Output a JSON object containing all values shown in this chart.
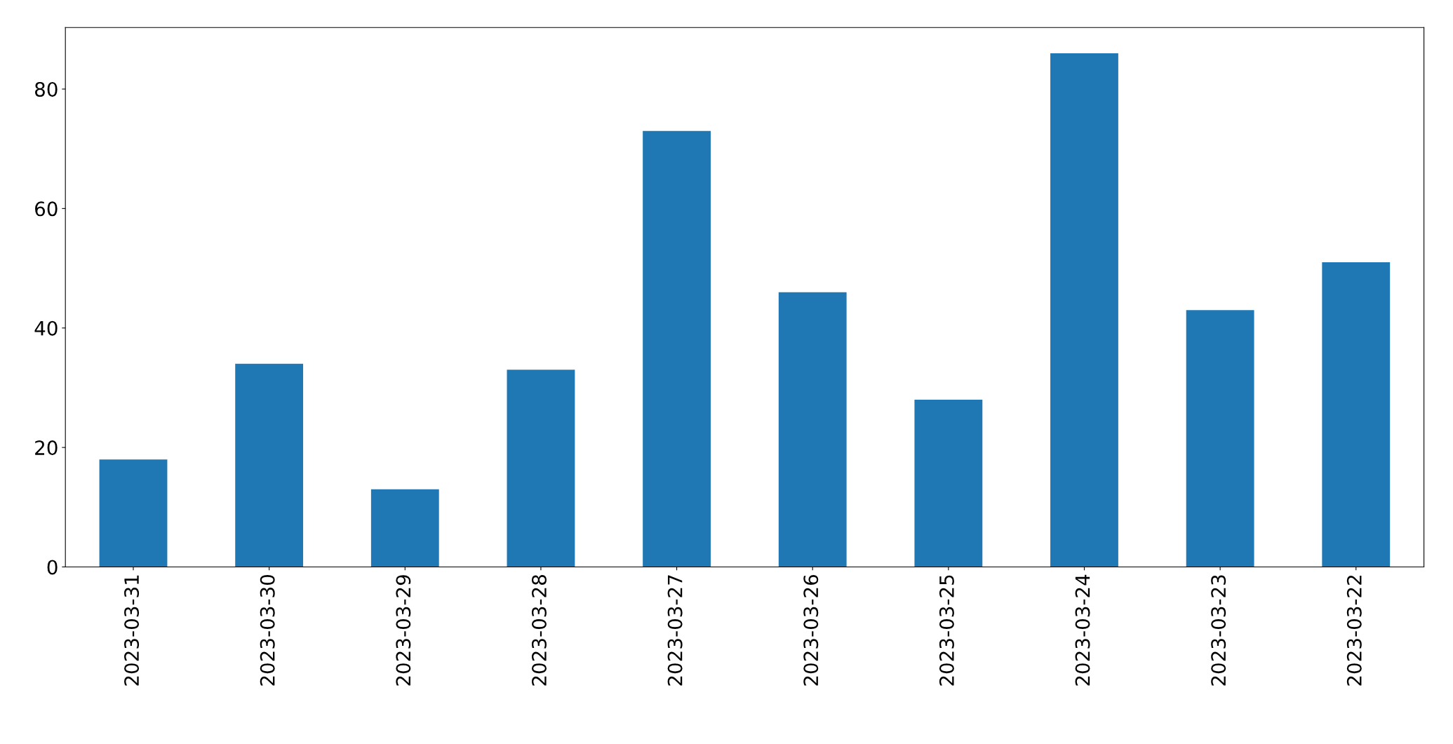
{
  "chart_data": {
    "type": "bar",
    "categories": [
      "2023-03-31",
      "2023-03-30",
      "2023-03-29",
      "2023-03-28",
      "2023-03-27",
      "2023-03-26",
      "2023-03-25",
      "2023-03-24",
      "2023-03-23",
      "2023-03-22"
    ],
    "values": [
      18,
      34,
      13,
      33,
      73,
      46,
      28,
      86,
      43,
      51
    ],
    "color": "#1f77b4",
    "ylim": [
      0,
      90.3
    ],
    "yticks": [
      0,
      20,
      40,
      60,
      80
    ],
    "grid": false,
    "legend": false
  }
}
